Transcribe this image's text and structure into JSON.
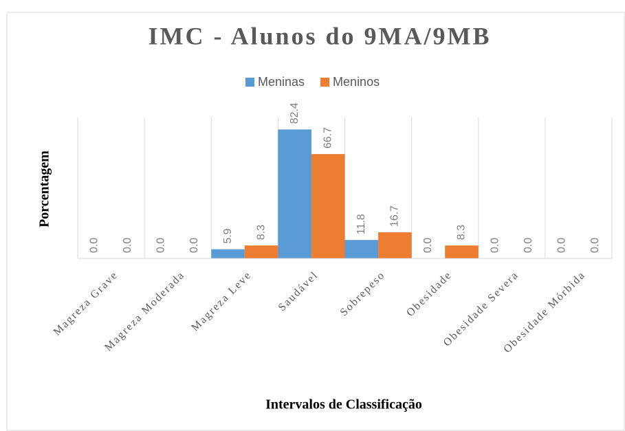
{
  "chart_data": {
    "type": "bar",
    "title": "IMC - Alunos do 9MA/9MB",
    "x_label": "Intervalos de Classificação",
    "y_label": "Porcentagem",
    "categories": [
      "Magreza Grave",
      "Magreza Moderada",
      "Magreza Leve",
      "Saudável",
      "Sobrepeso",
      "Obesidade",
      "Obesidade Severa",
      "Obesidade Mórbida"
    ],
    "series": [
      {
        "name": "Meninas",
        "color": "#5b9bd5",
        "values": [
          0,
          0,
          5.9,
          82.4,
          11.8,
          0,
          0,
          0
        ],
        "value_labels": [
          "0.0",
          "0.0",
          "5.9",
          "82.4",
          "11.8",
          "0.0",
          "0.0",
          "0.0"
        ]
      },
      {
        "name": "Meninos",
        "color": "#ed7d31",
        "values": [
          0,
          0,
          8.3,
          66.7,
          16.7,
          8.3,
          0,
          0
        ],
        "value_labels": [
          "0.0",
          "0.0",
          "8.3",
          "66.7",
          "16.7",
          "8.3",
          "0.0",
          "0.0"
        ]
      }
    ],
    "ylim": [
      0,
      90
    ],
    "grid": true,
    "legend": "top"
  }
}
